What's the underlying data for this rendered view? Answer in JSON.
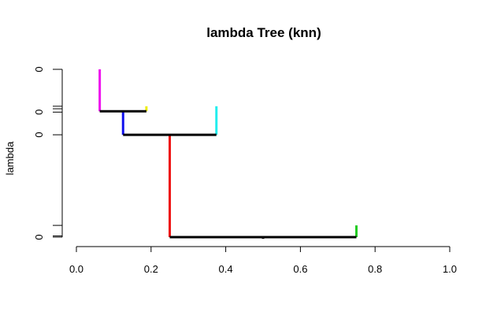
{
  "chart_data": {
    "type": "dendrogram",
    "title": "lambda Tree (knn)",
    "xlabel": "",
    "ylabel": "lambda",
    "xlim": [
      0.0,
      1.0
    ],
    "ylim": [
      0.0,
      1.0
    ],
    "x_ticks": [
      {
        "value": 0.0,
        "label": "0.0"
      },
      {
        "value": 0.2,
        "label": "0.2"
      },
      {
        "value": 0.4,
        "label": "0.4"
      },
      {
        "value": 0.6,
        "label": "0.6"
      },
      {
        "value": 0.8,
        "label": "0.8"
      },
      {
        "value": 1.0,
        "label": "1.0"
      }
    ],
    "y_ticks": [
      {
        "value": 0.0,
        "label": "0"
      },
      {
        "value": 0.007,
        "label": ""
      },
      {
        "value": 0.07,
        "label": ""
      },
      {
        "value": 0.61,
        "label": "0"
      },
      {
        "value": 0.745,
        "label": "0"
      },
      {
        "value": 0.765,
        "label": ""
      },
      {
        "value": 0.78,
        "label": ""
      },
      {
        "value": 1.0,
        "label": "0"
      }
    ],
    "horizontal_segments": [
      {
        "x0": 0.25,
        "x1": 0.75,
        "y": 0.0,
        "color": "#000000"
      },
      {
        "x0": 0.125,
        "x1": 0.375,
        "y": 0.61,
        "color": "#000000"
      },
      {
        "x0": 0.0625,
        "x1": 0.1875,
        "y": 0.75,
        "color": "#000000"
      }
    ],
    "vertical_segments": [
      {
        "x": 0.25,
        "y0": 0.0,
        "y1": 0.61,
        "color": "#ee1111"
      },
      {
        "x": 0.75,
        "y0": 0.0,
        "y1": 0.07,
        "color": "#22cc22"
      },
      {
        "x": 0.5,
        "y0": 0.0,
        "y1": -0.01,
        "color": "#000000"
      },
      {
        "x": 0.125,
        "y0": 0.61,
        "y1": 0.75,
        "color": "#1111ee"
      },
      {
        "x": 0.375,
        "y0": 0.61,
        "y1": 0.78,
        "color": "#22eeee"
      },
      {
        "x": 0.0625,
        "y0": 0.75,
        "y1": 1.0,
        "color": "#ee11ee"
      },
      {
        "x": 0.1875,
        "y0": 0.75,
        "y1": 0.78,
        "color": "#eeee11"
      }
    ]
  }
}
